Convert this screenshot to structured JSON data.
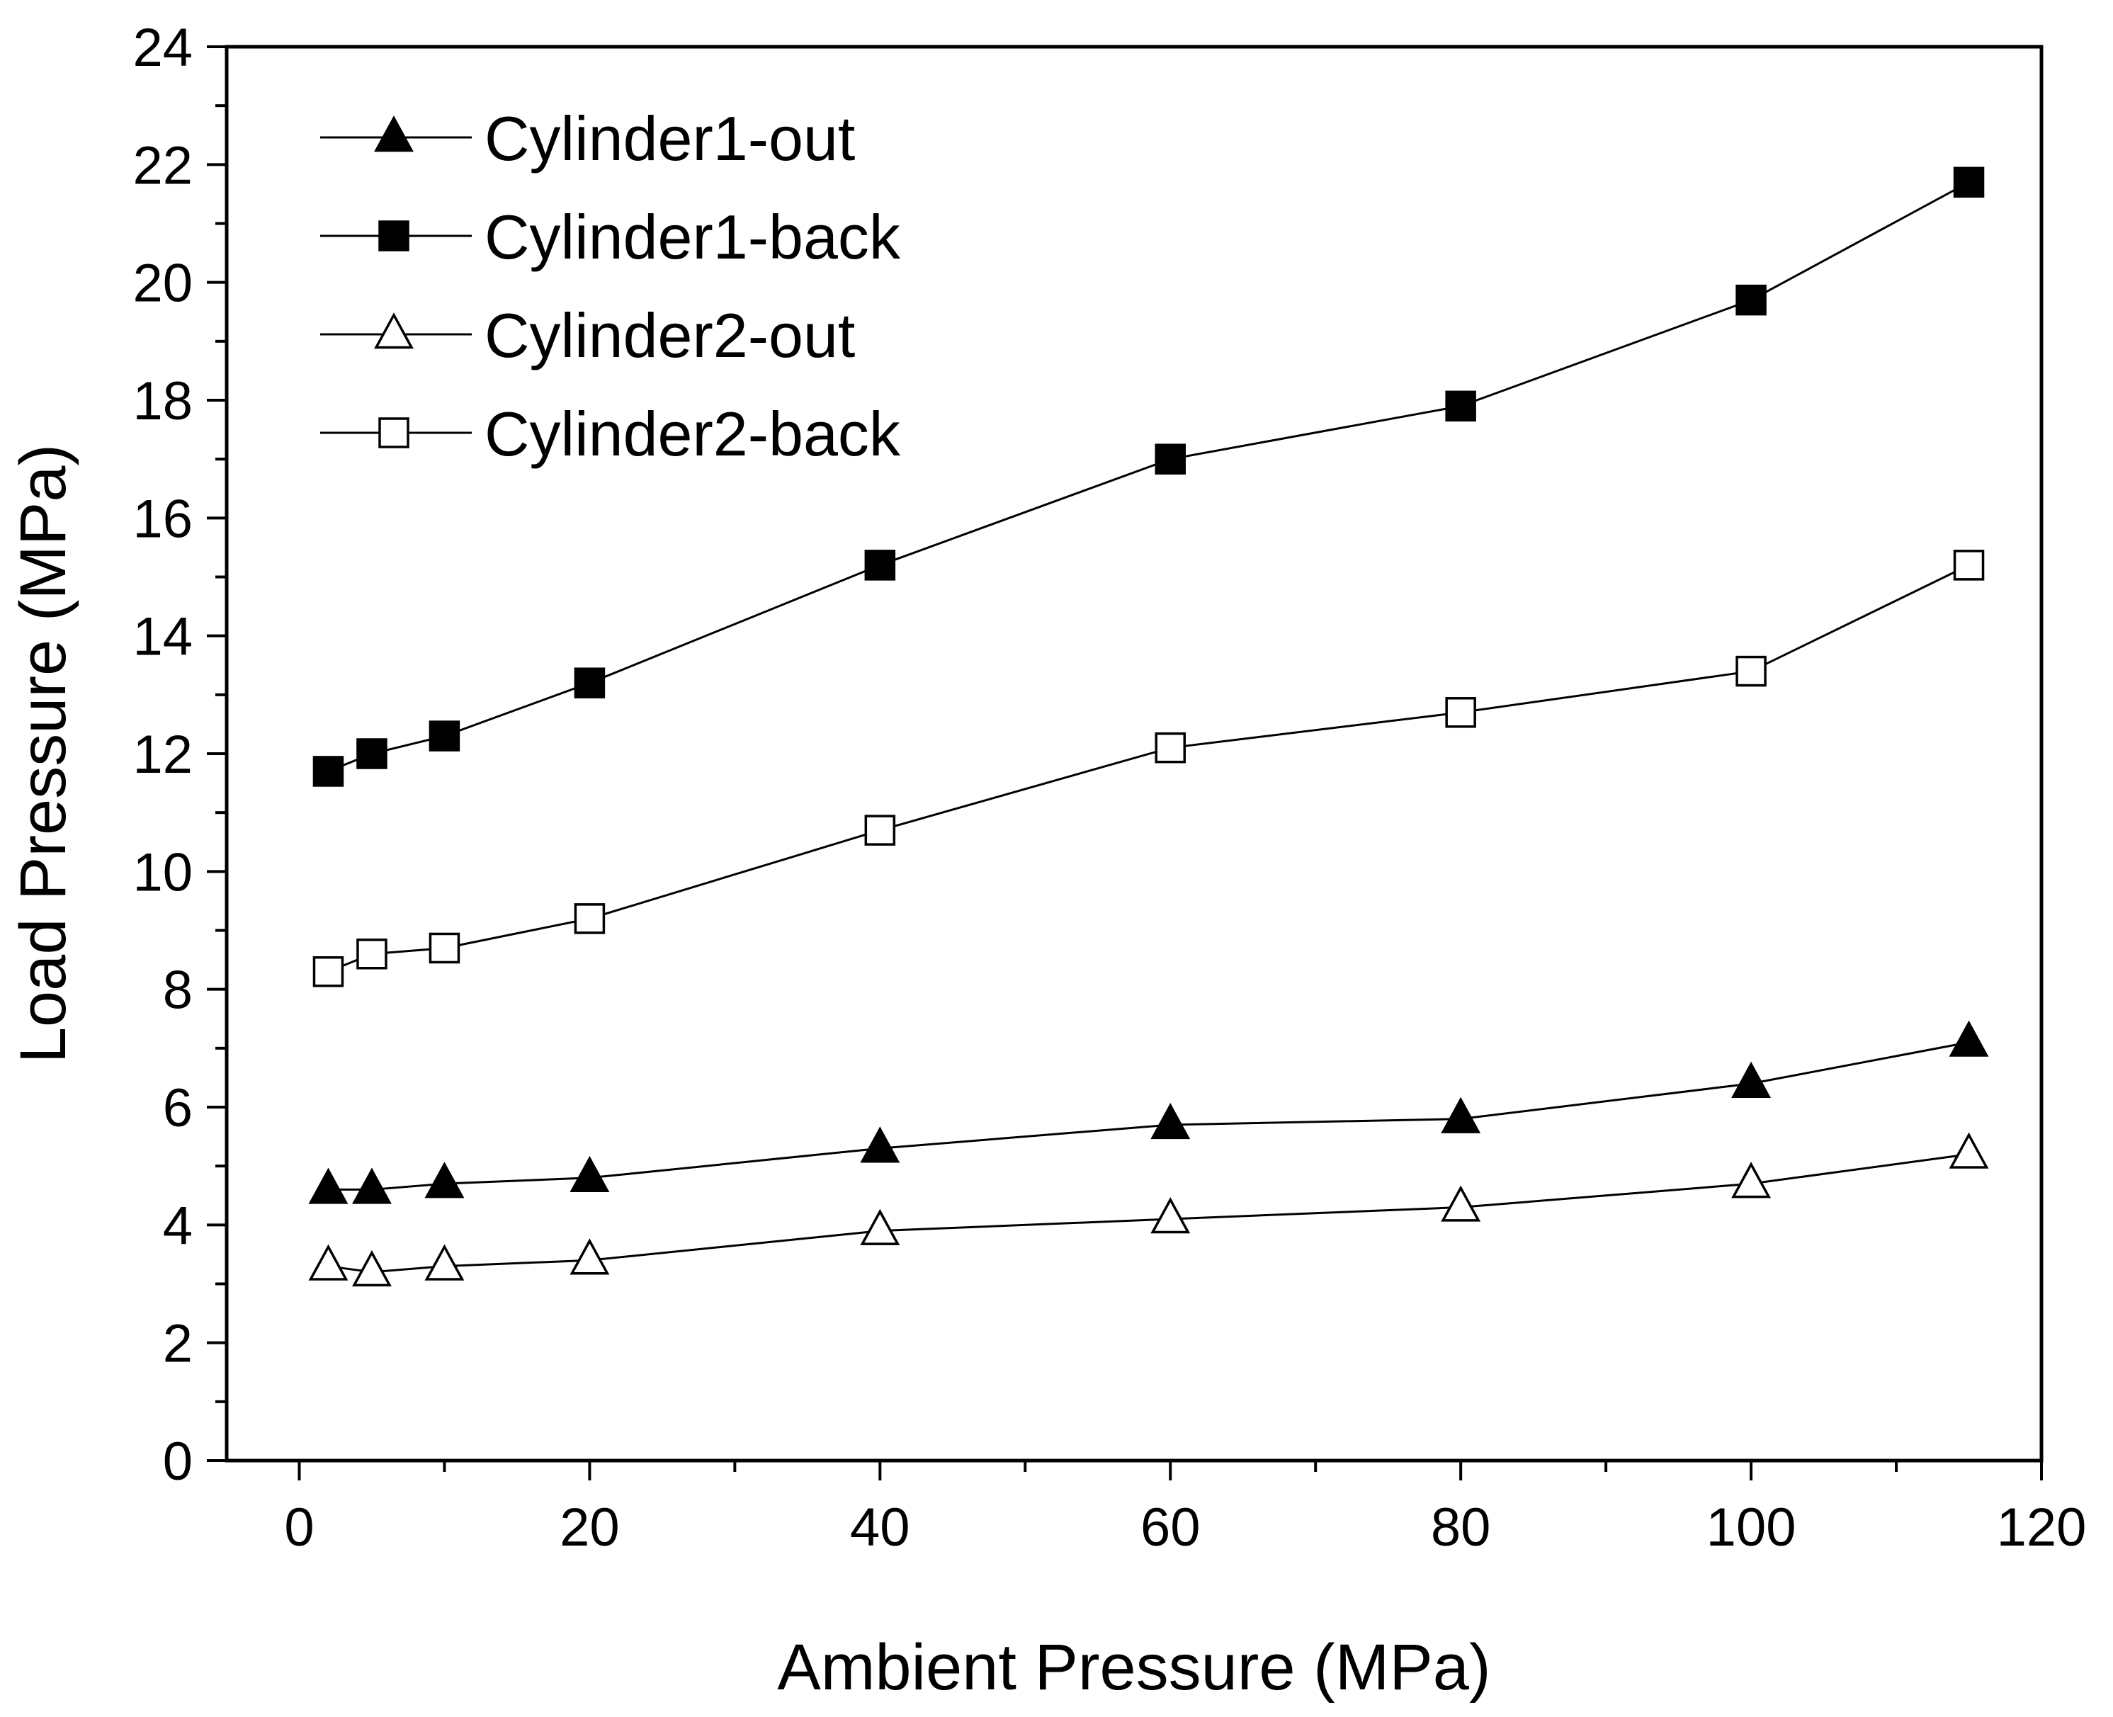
{
  "chart_data": {
    "type": "line",
    "title": "",
    "xlabel": "Ambient Pressure (MPa)",
    "ylabel": "Load Pressure (MPa)",
    "xlim": [
      -5,
      120
    ],
    "ylim": [
      0,
      24
    ],
    "xticks": [
      0,
      20,
      40,
      60,
      80,
      100,
      120
    ],
    "xtick_labels": [
      "0",
      "20",
      "40",
      "60",
      "80",
      "100",
      "120"
    ],
    "yticks": [
      0,
      2,
      4,
      6,
      8,
      10,
      12,
      14,
      16,
      18,
      20,
      22,
      24
    ],
    "ytick_labels": [
      "0",
      "2",
      "4",
      "6",
      "8",
      "10",
      "12",
      "14",
      "16",
      "18",
      "20",
      "22",
      "24"
    ],
    "grid": false,
    "legend_position": "top-left",
    "x": [
      2,
      5,
      10,
      20,
      40,
      60,
      80,
      100,
      115
    ],
    "series": [
      {
        "name": "Cylinder1-out",
        "marker": "triangle-filled",
        "values": [
          4.6,
          4.6,
          4.7,
          4.8,
          5.3,
          5.7,
          5.8,
          6.4,
          7.1
        ]
      },
      {
        "name": "Cylinder1-back",
        "marker": "square-filled",
        "values": [
          11.7,
          12.0,
          12.3,
          13.2,
          15.2,
          17.0,
          17.9,
          19.7,
          21.7
        ]
      },
      {
        "name": "Cylinder2-out",
        "marker": "triangle-open",
        "values": [
          3.3,
          3.2,
          3.3,
          3.4,
          3.9,
          4.1,
          4.3,
          4.7,
          5.2
        ]
      },
      {
        "name": "Cylinder2-back",
        "marker": "square-open",
        "values": [
          8.3,
          8.6,
          8.7,
          9.2,
          10.7,
          12.1,
          12.7,
          13.4,
          15.2
        ]
      }
    ]
  },
  "colors": {
    "line": "#000000",
    "fill": "#000000",
    "background": "#ffffff"
  }
}
